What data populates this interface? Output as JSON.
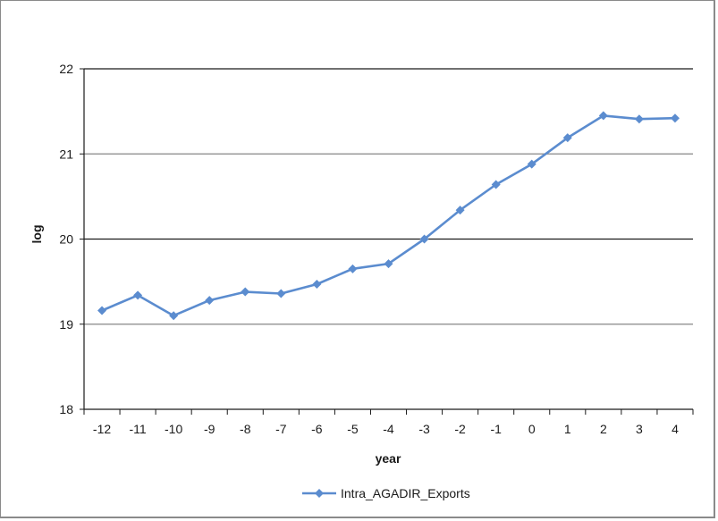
{
  "chart_data": {
    "type": "line",
    "xlabel": "year",
    "ylabel": "log",
    "ylim": [
      18,
      22
    ],
    "yticks": [
      "18",
      "19",
      "20",
      "21",
      "22"
    ],
    "x": [
      "-12",
      "-11",
      "-10",
      "-9",
      "-8",
      "-7",
      "-6",
      "-5",
      "-4",
      "-3",
      "-2",
      "-1",
      "0",
      "1",
      "2",
      "3",
      "4"
    ],
    "series": [
      {
        "name": "Intra_AGADIR_Exports",
        "values": [
          19.16,
          19.34,
          19.1,
          19.28,
          19.38,
          19.36,
          19.47,
          19.65,
          19.71,
          20.0,
          20.34,
          20.64,
          20.88,
          21.19,
          21.45,
          21.41,
          21.42
        ]
      }
    ],
    "legend_position": "bottom",
    "colors": {
      "series": "#5b8ccf",
      "gridline_dark": "#1a1a1a",
      "gridline_light": "#9a9a9a"
    }
  }
}
